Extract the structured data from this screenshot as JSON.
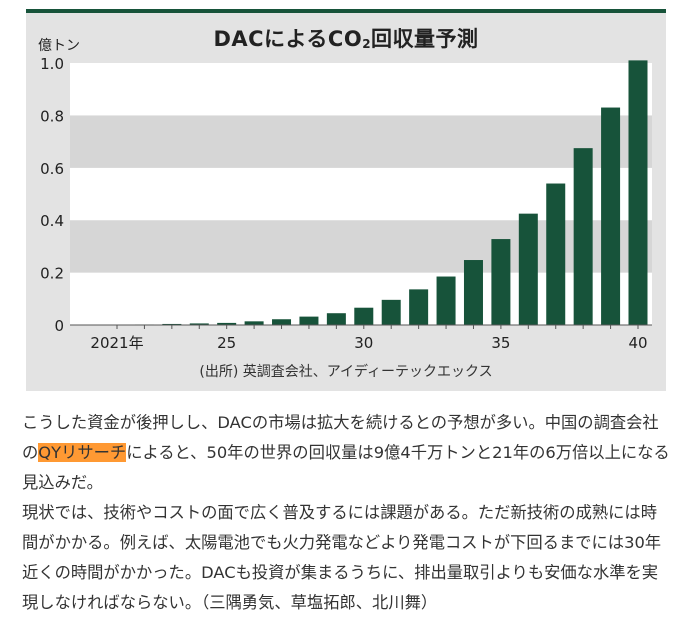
{
  "chart_data": {
    "type": "bar",
    "title_prefix": "DACによるCO",
    "title_sub": "2",
    "title_suffix": "回収量予測",
    "unit_label": "億トン",
    "ylim": [
      0,
      1.0
    ],
    "yticks": [
      0,
      0.2,
      0.4,
      0.6,
      0.8,
      1.0
    ],
    "ytick_labels": [
      "0",
      "0.2",
      "0.4",
      "0.6",
      "0.8",
      "1.0"
    ],
    "x": [
      2021,
      2022,
      2023,
      2024,
      2025,
      2026,
      2027,
      2028,
      2029,
      2030,
      2031,
      2032,
      2033,
      2034,
      2035,
      2036,
      2037,
      2038,
      2039,
      2040
    ],
    "values": [
      0.0,
      0.002,
      0.004,
      0.006,
      0.008,
      0.014,
      0.022,
      0.032,
      0.045,
      0.066,
      0.096,
      0.136,
      0.185,
      0.248,
      0.328,
      0.425,
      0.54,
      0.675,
      0.83,
      1.01
    ],
    "xtick_values": [
      2021,
      2025,
      2030,
      2035,
      2040
    ],
    "xtick_labels": [
      "2021年",
      "25",
      "30",
      "35",
      "40"
    ],
    "grid": "horizontal bands",
    "bar_color": "#17533a",
    "band_color": "#d6d6d6",
    "source": "(出所) 英調査会社、アイディーテックエックス"
  },
  "article": {
    "p1_before": "こうした資金が後押しし、DACの市場は拡大を続けるとの予想が多い。中国の調査会社の",
    "p1_highlight": "QYリサーチ",
    "p1_after": "によると、50年の世界の回収量は9億4千万トンと21年の6万倍以上になる見込みだ。",
    "p2": "現状では、技術やコストの面で広く普及するには課題がある。ただ新技術の成熟には時間がかかる。例えば、太陽電池でも火力発電などより発電コストが下回るまでには30年近くの時間がかかった。DACも投資が集まるうちに、排出量取引よりも安価な水準を実現しなければならない。（三隅勇気、草塩拓郎、北川舞）",
    "highlight_color": "#ff9933"
  }
}
